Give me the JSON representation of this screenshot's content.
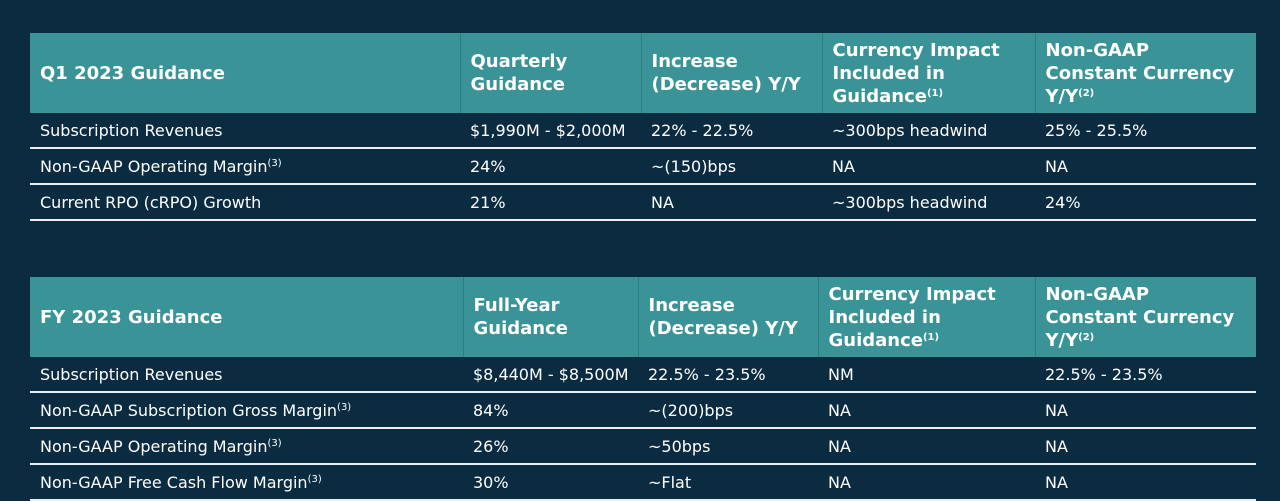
{
  "tables": [
    {
      "header": [
        {
          "text": "Q1 2023 Guidance"
        },
        {
          "text": "Quarterly Guidance"
        },
        {
          "text": "Increase (Decrease) Y/Y"
        },
        {
          "text": "Currency Impact Included in Guidance",
          "note": "(1)"
        },
        {
          "text": "Non-GAAP Constant Currency Y/Y",
          "note": "(2)"
        }
      ],
      "rows": [
        {
          "label": "Subscription Revenues",
          "cells": [
            "$1,990M - $2,000M",
            "22% - 22.5%",
            "~300bps headwind",
            "25% - 25.5%"
          ]
        },
        {
          "label": "Non-GAAP Operating Margin",
          "note": "(3)",
          "cells": [
            "24%",
            "~(150)bps",
            "NA",
            "NA"
          ]
        },
        {
          "label": "Current RPO (cRPO) Growth",
          "cells": [
            "21%",
            "NA",
            "~300bps headwind",
            "24%"
          ]
        }
      ]
    },
    {
      "header": [
        {
          "text": "FY 2023 Guidance"
        },
        {
          "text": "Full-Year Guidance"
        },
        {
          "text": "Increase (Decrease) Y/Y"
        },
        {
          "text": "Currency Impact Included in Guidance",
          "note": "(1)"
        },
        {
          "text": "Non-GAAP Constant Currency Y/Y",
          "note": "(2)"
        }
      ],
      "rows": [
        {
          "label": "Subscription Revenues",
          "cells": [
            "$8,440M - $8,500M",
            "22.5% - 23.5%",
            "NM",
            "22.5% - 23.5%"
          ]
        },
        {
          "label": "Non-GAAP Subscription Gross Margin",
          "note": "(3)",
          "cells": [
            "84%",
            "~(200)bps",
            "NA",
            "NA"
          ]
        },
        {
          "label": "Non-GAAP Operating Margin",
          "note": "(3)",
          "cells": [
            "26%",
            "~50bps",
            "NA",
            "NA"
          ]
        },
        {
          "label": "Non-GAAP Free Cash Flow Margin",
          "note": "(3)",
          "cells": [
            "30%",
            "~Flat",
            "NA",
            "NA"
          ]
        }
      ]
    }
  ]
}
